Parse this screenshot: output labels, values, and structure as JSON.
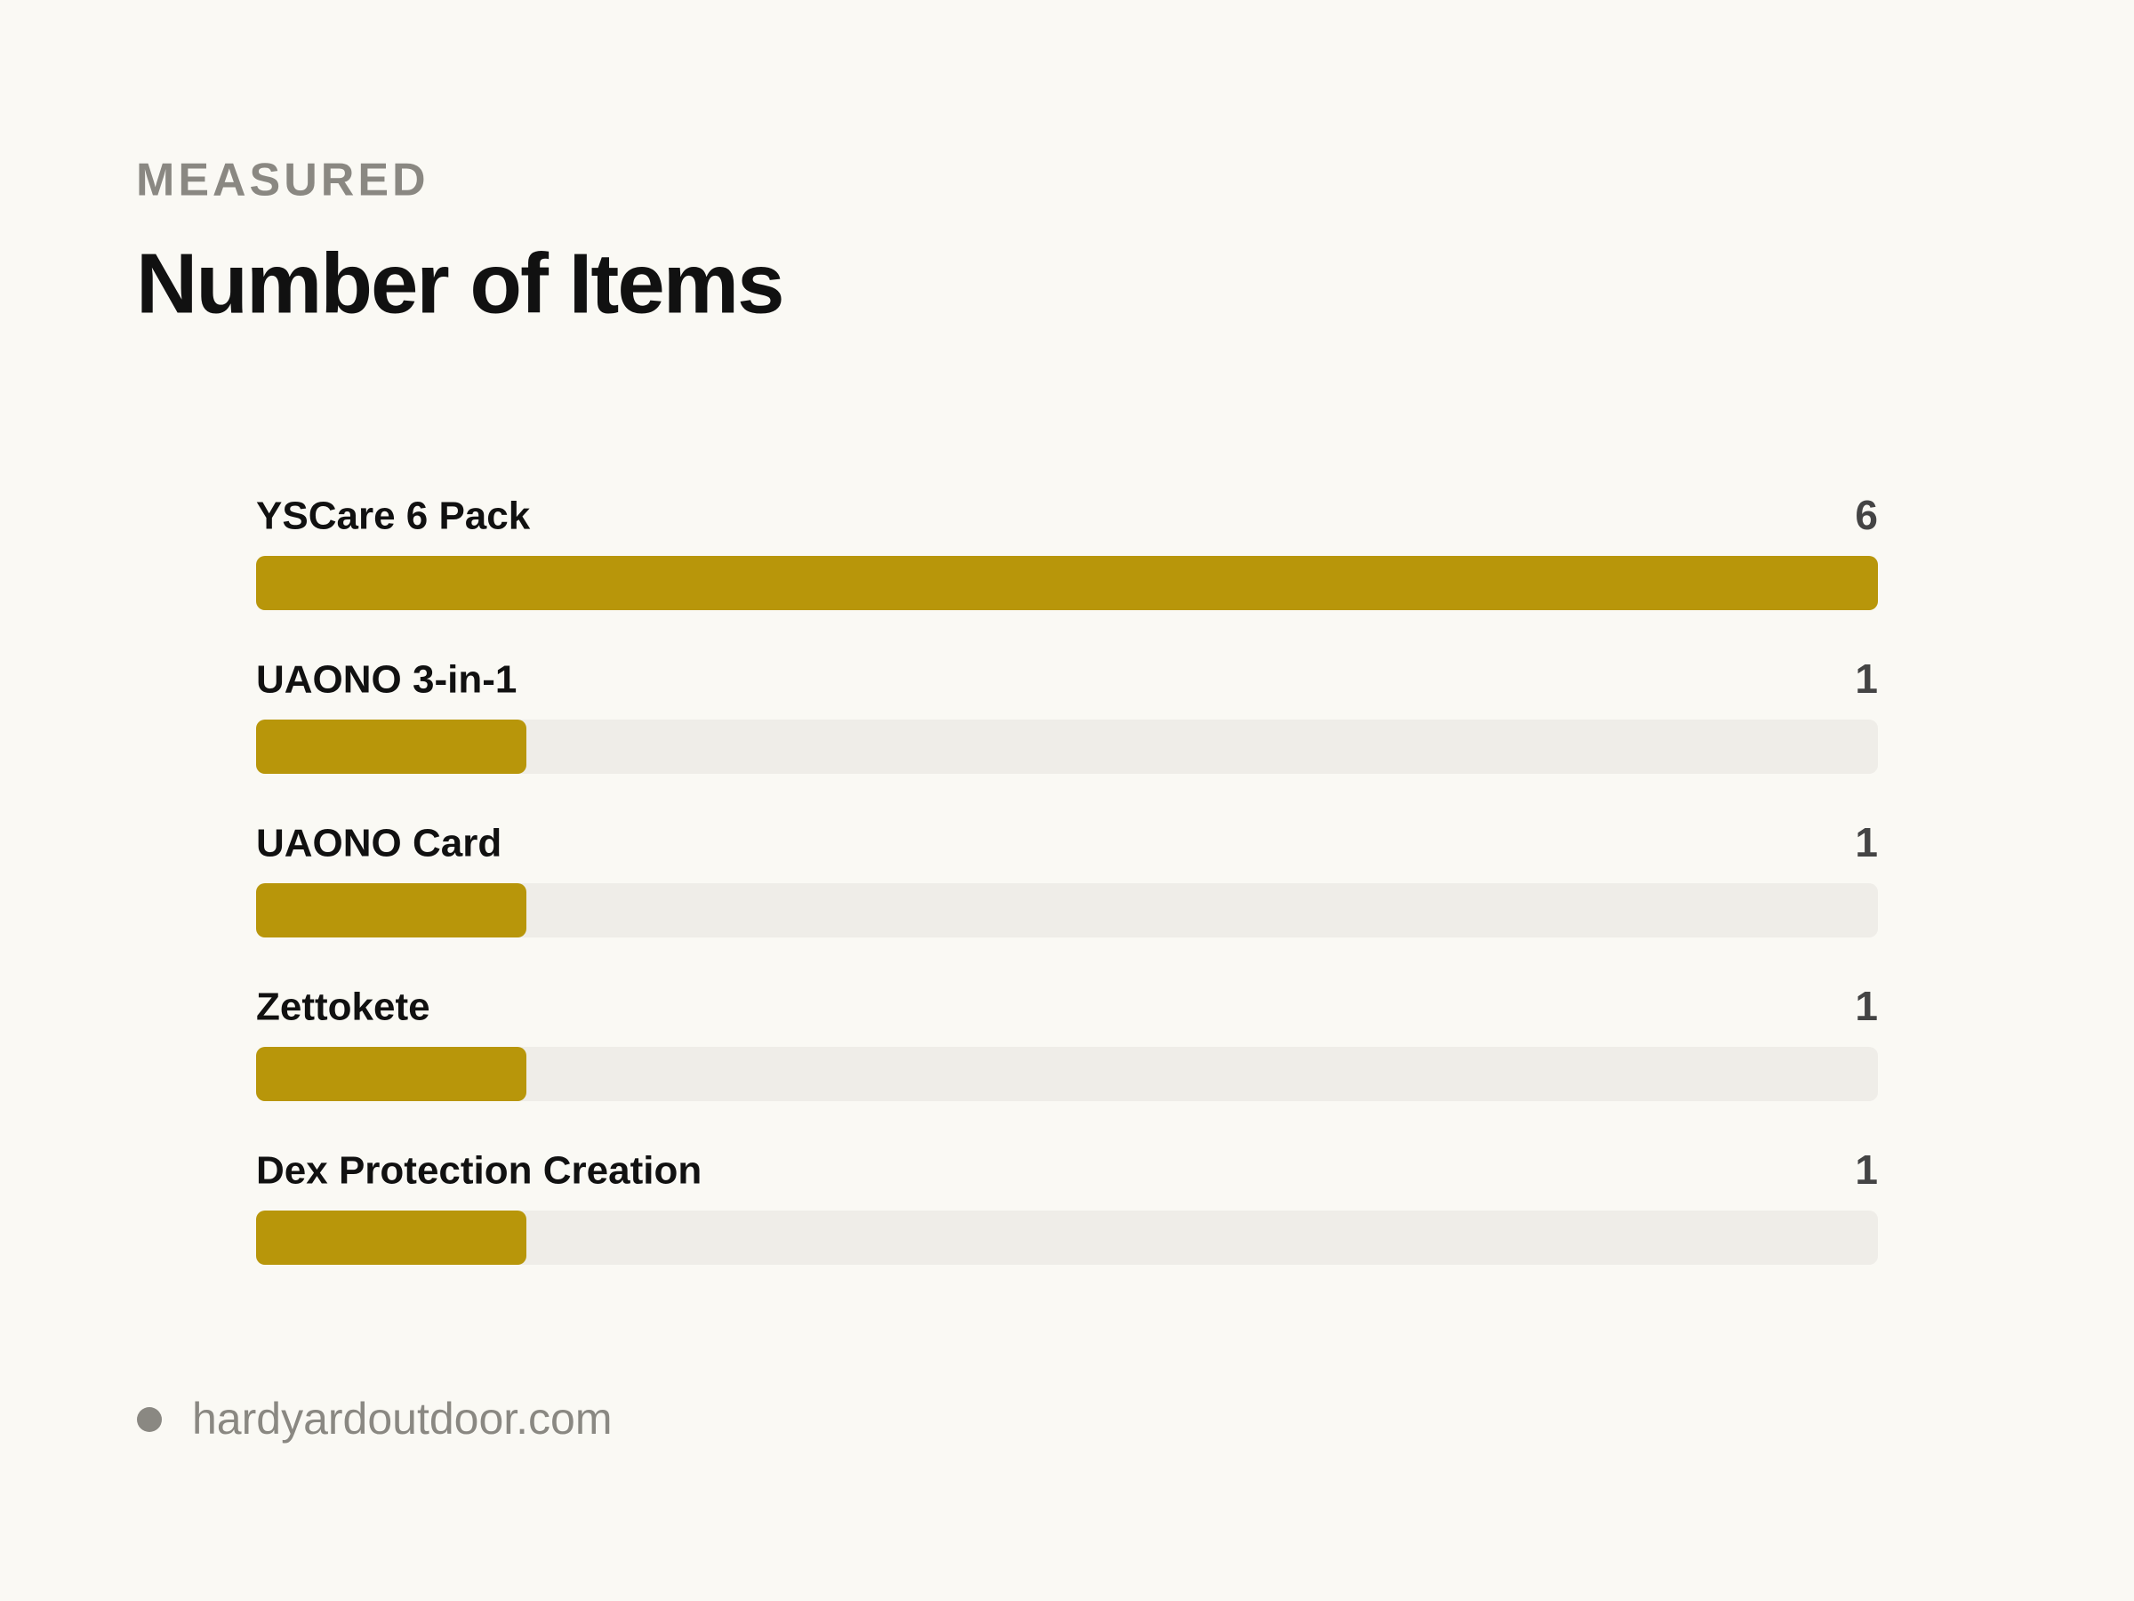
{
  "chart_data": {
    "type": "bar",
    "orientation": "horizontal",
    "subtitle": "MEASURED",
    "title": "Number of Items",
    "categories": [
      "YSCare 6 Pack",
      "UAONO 3-in-1",
      "UAONO Card",
      "Zettokete",
      "Dex Protection Creation"
    ],
    "values": [
      6,
      1,
      1,
      1,
      1
    ],
    "xlim": [
      0,
      6
    ],
    "color": "#b8960a",
    "track_color": "#efede8",
    "source": "hardyardoutdoor.com"
  }
}
